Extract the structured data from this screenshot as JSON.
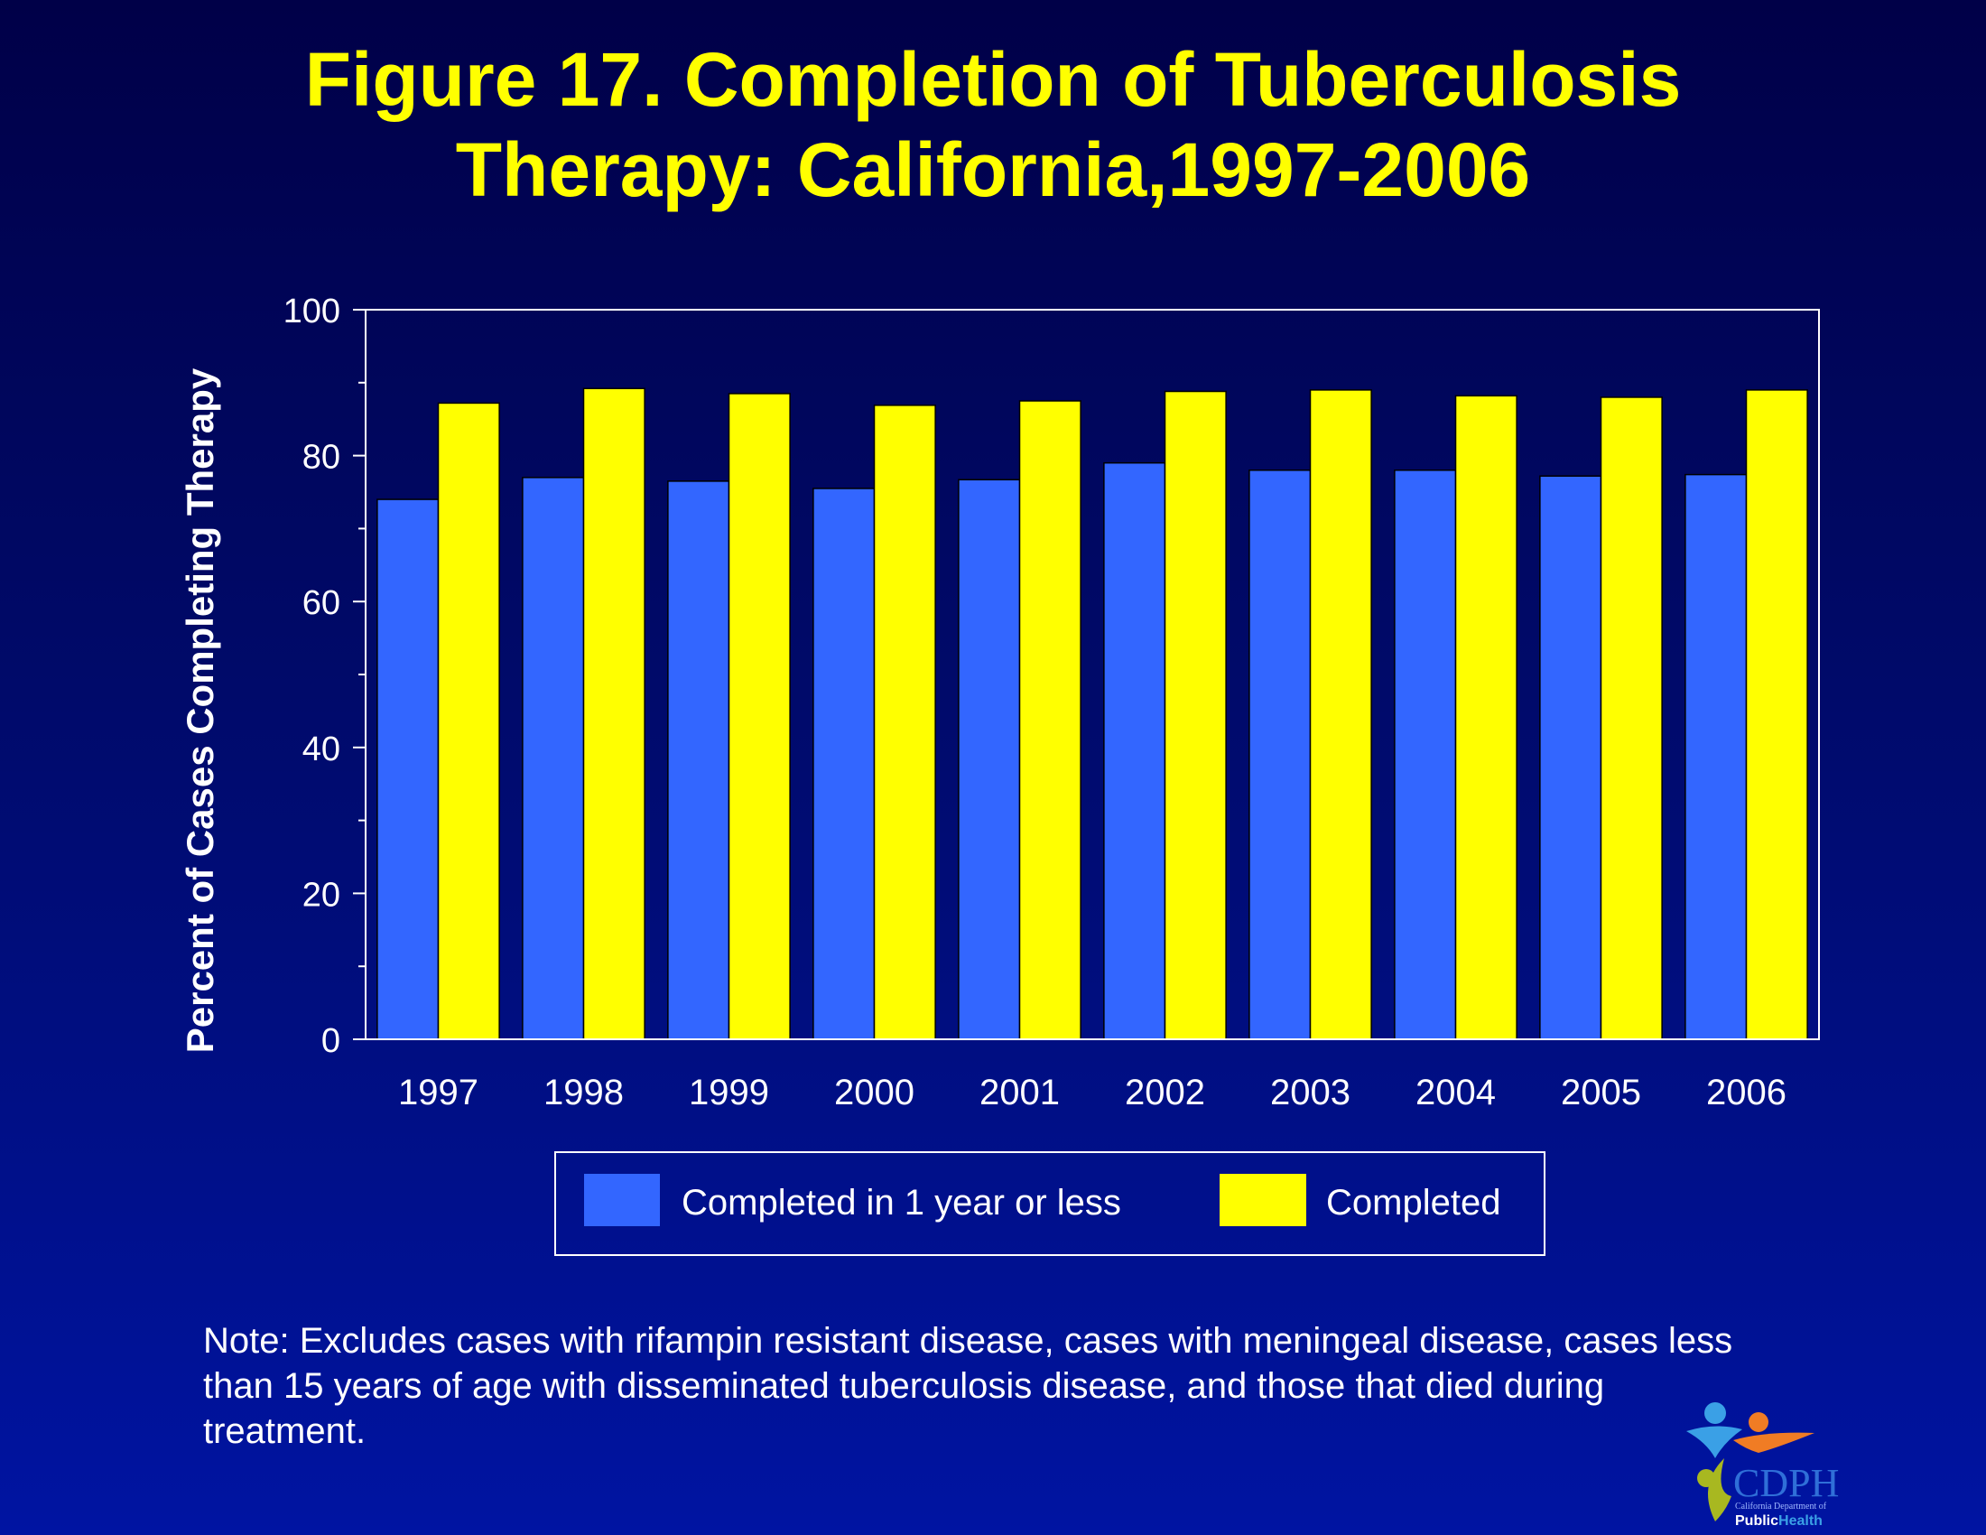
{
  "title": {
    "line1": "Figure 17. Completion of Tuberculosis",
    "line2": "Therapy: California,1997-2006"
  },
  "colors": {
    "background_top": "#000048",
    "background_bottom": "#0014a2",
    "title": "#ffff00",
    "series_completed_1yr": "#3366ff",
    "series_completed": "#ffff00",
    "axis_text": "#ffffff"
  },
  "chart_data": {
    "type": "bar",
    "categories": [
      "1997",
      "1998",
      "1999",
      "2000",
      "2001",
      "2002",
      "2003",
      "2004",
      "2005",
      "2006"
    ],
    "series": [
      {
        "name": "Completed in 1 year or less",
        "values": [
          74,
          77,
          76.5,
          75.5,
          76.7,
          79,
          78,
          78,
          77.2,
          77.4
        ]
      },
      {
        "name": "Completed",
        "values": [
          87.2,
          89.2,
          88.5,
          86.9,
          87.5,
          88.8,
          89,
          88.2,
          88,
          89
        ]
      }
    ],
    "ylabel": "Percent of Cases Completing Therapy",
    "xlabel": "",
    "ylim": [
      0,
      100
    ],
    "yticks": [
      0,
      20,
      40,
      60,
      80,
      100
    ],
    "grid": false,
    "legend_position": "bottom"
  },
  "note": "Note: Excludes cases with rifampin resistant disease, cases with meningeal disease, cases less than 15 years of age with disseminated tuberculosis disease, and those that died during treatment.",
  "logo": {
    "text": "CDPH",
    "subtitle": "California Department of",
    "brand_public": "Public",
    "brand_health": "Health"
  }
}
